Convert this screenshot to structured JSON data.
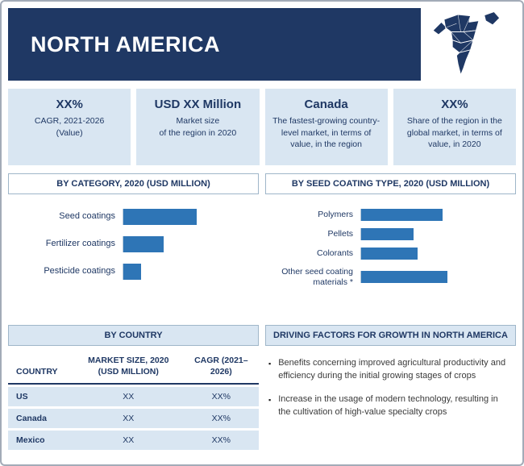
{
  "header": {
    "title": "NORTH AMERICA"
  },
  "stats": [
    {
      "headline": "XX%",
      "sub1": "CAGR, 2021-2026",
      "sub2": "(Value)"
    },
    {
      "headline": "USD XX Million",
      "sub1": "Market size",
      "sub2": "of the region in 2020"
    },
    {
      "headline": "Canada",
      "sub1": "The fastest-growing country-level market, in terms of value, in the region"
    },
    {
      "headline": "XX%",
      "sub1": "Share of the region in the global market, in terms of value, in 2020"
    }
  ],
  "chart_data": [
    {
      "type": "bar",
      "orientation": "horizontal",
      "title": "BY CATEGORY, 2020 (USD MILLION)",
      "categories": [
        "Seed coatings",
        "Fertilizer coatings",
        "Pesticide coatings"
      ],
      "values": [
        100,
        55,
        24
      ],
      "value_note": "bar lengths estimated in relative units; printed values masked as XX in source",
      "xlim": [
        0,
        150
      ],
      "grid": false,
      "legend": "none"
    },
    {
      "type": "bar",
      "orientation": "horizontal",
      "title": "BY SEED COATING TYPE, 2020 (USD MILLION)",
      "categories": [
        "Polymers",
        "Pellets",
        "Colorants",
        "Other seed coating materials *"
      ],
      "values": [
        95,
        61,
        66,
        100
      ],
      "value_note": "bar lengths estimated in relative units; printed values masked as XX in source",
      "xlim": [
        0,
        150
      ],
      "grid": false,
      "legend": "none"
    }
  ],
  "by_country": {
    "title": "BY COUNTRY",
    "columns": [
      "COUNTRY",
      "MARKET SIZE, 2020 (USD MILLION)",
      "CAGR (2021–2026)"
    ],
    "rows": [
      {
        "country": "US",
        "market_size": "XX",
        "cagr": "XX%"
      },
      {
        "country": "Canada",
        "market_size": "XX",
        "cagr": "XX%"
      },
      {
        "country": "Mexico",
        "market_size": "XX",
        "cagr": "XX%"
      }
    ]
  },
  "driving_factors": {
    "title": "DRIVING FACTORS FOR GROWTH IN NORTH AMERICA",
    "bullets": [
      "Benefits concerning improved agricultural productivity and efficiency during the initial growing stages of crops",
      "Increase in the usage of modern technology, resulting in the cultivation of high-value specialty crops"
    ]
  },
  "colors": {
    "navy": "#1f3864",
    "panel-blue": "#d9e6f2",
    "bar-blue": "#2e75b6"
  }
}
